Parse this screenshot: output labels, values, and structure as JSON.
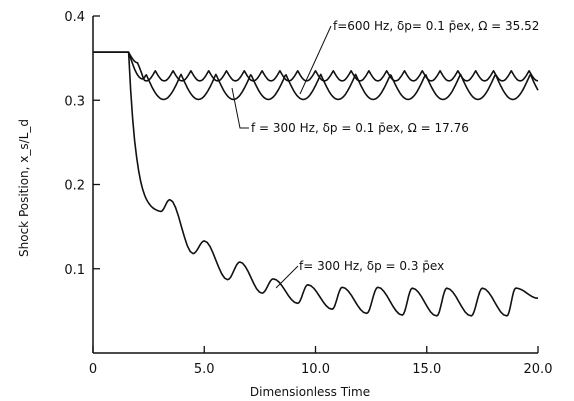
{
  "chart_data": {
    "type": "line",
    "title": "",
    "xlabel": "Dimensionless Time",
    "ylabel": "Shock Position, x_s/L_d",
    "xlim": [
      0,
      20
    ],
    "ylim": [
      0,
      0.4
    ],
    "x_ticks": [
      0,
      5,
      10,
      15,
      20
    ],
    "x_tick_labels": [
      "0",
      "5.0",
      "10.0",
      "15.0",
      "20.0"
    ],
    "y_ticks": [
      0.1,
      0.2,
      0.3,
      0.4
    ],
    "y_tick_labels": [
      "0.1",
      "0.2",
      "0.3",
      "0.4"
    ],
    "grid": false,
    "series": [
      {
        "label": "f=600 Hz, δp= 0.1 p̄ex, Ω = 35.52",
        "initial": 0.357,
        "onset": 1.6,
        "mean": 0.329,
        "amplitude": 0.006,
        "period": 0.8
      },
      {
        "label": "f = 300 Hz, δp = 0.1 p̄ex, Ω = 17.76",
        "initial": 0.357,
        "onset": 1.6,
        "mean": 0.316,
        "amplitude": 0.015,
        "period": 1.57
      },
      {
        "label": "f= 300 Hz, δp = 0.3 p̄ex",
        "initial": 0.357,
        "onset": 1.6,
        "mean": 0.062,
        "amplitude": 0.022,
        "period": 1.57,
        "peaks": [
          [
            3.45,
            0.182
          ],
          [
            5.0,
            0.133
          ],
          [
            6.6,
            0.108
          ],
          [
            8.1,
            0.088
          ],
          [
            9.65,
            0.081
          ],
          [
            11.2,
            0.078
          ],
          [
            12.8,
            0.078
          ],
          [
            14.35,
            0.077
          ],
          [
            15.9,
            0.077
          ],
          [
            17.5,
            0.077
          ],
          [
            19.0,
            0.077
          ]
        ],
        "troughs": [
          [
            4.5,
            0.118
          ],
          [
            6.05,
            0.087
          ],
          [
            7.6,
            0.071
          ],
          [
            9.2,
            0.059
          ],
          [
            10.75,
            0.052
          ],
          [
            12.3,
            0.047
          ],
          [
            13.9,
            0.045
          ],
          [
            15.45,
            0.044
          ],
          [
            17.0,
            0.044
          ],
          [
            18.6,
            0.044
          ]
        ],
        "end": [
          20.0,
          0.065
        ]
      }
    ]
  }
}
